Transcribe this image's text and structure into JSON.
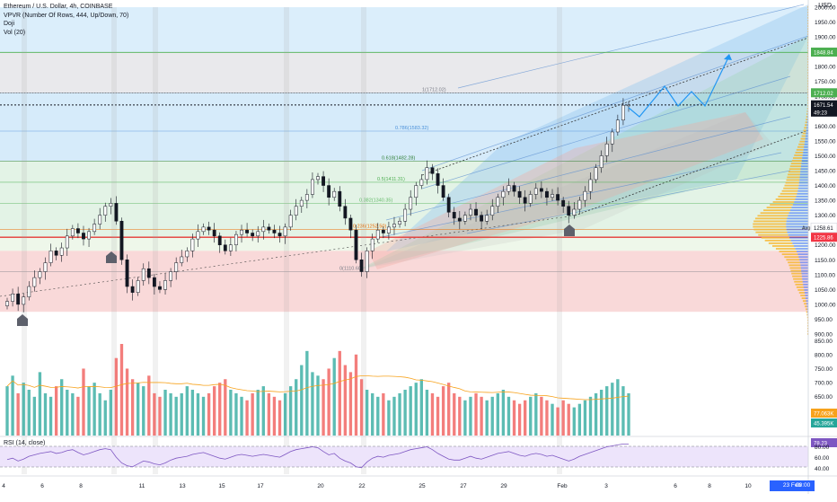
{
  "header": {
    "lines": [
      "Ethereum / U.S. Dollar, 4h, COINBASE",
      "VPVR (Number Of Rows, 444, Up/Down, 70)",
      "Doji",
      "Vol (20)"
    ],
    "currency": "USD"
  },
  "rsi": {
    "label": "RSI (14, close)",
    "value_label": "78.23",
    "ticks": [
      "80.00",
      "60.00",
      "40.00"
    ]
  },
  "price_axis": {
    "min": 900,
    "max": 2000,
    "ticks": [
      "2000.00",
      "1950.00",
      "1900.00",
      "1850.00",
      "1800.00",
      "1750.00",
      "1700.00",
      "1650.00",
      "1600.00",
      "1550.00",
      "1500.00",
      "1450.00",
      "1400.00",
      "1350.00",
      "1300.00",
      "1250.00",
      "1200.00",
      "1150.00",
      "1100.00",
      "1050.00",
      "1000.00",
      "950.00",
      "900.00"
    ],
    "badges": [
      {
        "label": "1848.84",
        "value": 1848.84,
        "color": "#4caf50"
      },
      {
        "label": "1712.02",
        "value": 1712.02,
        "color": "#4caf50"
      },
      {
        "label": "1671.54",
        "value": 1671.54,
        "color": "#131722"
      },
      {
        "label": "49:23",
        "value": 1647,
        "color": "#131722"
      },
      {
        "label": "1258.61",
        "value": 1258.61,
        "color": "#ffffff"
      },
      {
        "label": "1225.86",
        "value": 1225.86,
        "color": "#f23645"
      }
    ],
    "avg_label": "Avg"
  },
  "volume_axis": {
    "ticks": [
      "850.00",
      "800.00",
      "750.00",
      "700.00",
      "650.00",
      "600.00",
      "550.00"
    ],
    "badges": [
      {
        "label": "77.063K",
        "color": "#f7a21b"
      },
      {
        "label": "45.395K",
        "color": "#26a69a"
      }
    ]
  },
  "time_axis": {
    "labels": [
      "4",
      "6",
      "8",
      "11",
      "13",
      "15",
      "17",
      "20",
      "22",
      "25",
      "27",
      "29",
      "Feb",
      "3",
      "6",
      "8",
      "10"
    ],
    "date_badge": "23 Feb '21",
    "time_badge": "00:00"
  },
  "fib_levels": [
    {
      "label": "1(1712.02)",
      "value": 1712
    },
    {
      "label": "0.786(1583.32)",
      "value": 1583
    },
    {
      "label": "0.618(1482.28)",
      "value": 1482
    },
    {
      "label": "0.5(1411.31)",
      "value": 1411
    },
    {
      "label": "0.382(1340.35)",
      "value": 1340
    },
    {
      "label": "0.236(1252.50)",
      "value": 1252
    },
    {
      "label": "0(1110.60)",
      "value": 1110
    }
  ],
  "chart_data": {
    "type": "candlestick",
    "title": "Ethereum / U.S. Dollar, 4h, COINBASE",
    "ylim": [
      900,
      2000
    ],
    "x_labels": [
      "4",
      "6",
      "8",
      "11",
      "13",
      "15",
      "17",
      "20",
      "22",
      "25",
      "27",
      "29",
      "Feb",
      "3",
      "6",
      "8",
      "10"
    ],
    "key_prices": {
      "last": 1671.54,
      "resistance": 1848.84,
      "fib_1": 1712.02,
      "support": 1225.86,
      "poc": 1258.61
    },
    "close": [
      1010,
      1035,
      1000,
      1025,
      1060,
      1090,
      1110,
      1140,
      1180,
      1165,
      1190,
      1230,
      1255,
      1240,
      1220,
      1245,
      1270,
      1300,
      1330,
      1340,
      1280,
      1150,
      1060,
      1040,
      1080,
      1120,
      1090,
      1060,
      1050,
      1080,
      1110,
      1140,
      1160,
      1180,
      1220,
      1245,
      1260,
      1250,
      1230,
      1200,
      1180,
      1200,
      1235,
      1250,
      1240,
      1230,
      1245,
      1260,
      1250,
      1240,
      1230,
      1260,
      1300,
      1330,
      1350,
      1370,
      1420,
      1430,
      1400,
      1360,
      1380,
      1330,
      1290,
      1250,
      1150,
      1110,
      1180,
      1220,
      1250,
      1240,
      1260,
      1270,
      1280,
      1320,
      1360,
      1400,
      1420,
      1460,
      1440,
      1400,
      1360,
      1310,
      1290,
      1280,
      1300,
      1320,
      1300,
      1280,
      1300,
      1330,
      1360,
      1380,
      1400,
      1380,
      1360,
      1340,
      1370,
      1390,
      1380,
      1360,
      1370,
      1350,
      1330,
      1300,
      1320,
      1350,
      1380,
      1420,
      1460,
      1500,
      1540,
      1580,
      1620,
      1670,
      1671
    ],
    "volume": [
      70,
      85,
      60,
      75,
      65,
      55,
      90,
      60,
      55,
      70,
      80,
      65,
      60,
      55,
      95,
      70,
      75,
      60,
      50,
      65,
      110,
      130,
      95,
      80,
      75,
      70,
      85,
      60,
      55,
      65,
      60,
      55,
      60,
      70,
      65,
      60,
      55,
      60,
      70,
      75,
      80,
      65,
      60,
      55,
      50,
      60,
      65,
      70,
      60,
      55,
      50,
      60,
      70,
      80,
      100,
      120,
      90,
      85,
      80,
      95,
      110,
      120,
      100,
      90,
      115,
      80,
      65,
      60,
      55,
      60,
      50,
      55,
      60,
      65,
      70,
      75,
      80,
      65,
      60,
      55,
      70,
      75,
      60,
      55,
      50,
      55,
      60,
      55,
      50,
      55,
      60,
      65,
      55,
      50,
      45,
      50,
      55,
      60,
      55,
      50,
      45,
      40,
      50,
      45,
      40,
      45,
      50,
      55,
      60,
      65,
      70,
      75,
      80,
      70,
      60
    ],
    "volume_ma_label": "77.063K",
    "rsi": [
      45,
      48,
      42,
      46,
      52,
      55,
      58,
      60,
      62,
      58,
      60,
      64,
      66,
      60,
      55,
      58,
      62,
      66,
      68,
      66,
      50,
      38,
      32,
      30,
      36,
      42,
      40,
      36,
      34,
      38,
      44,
      48,
      50,
      52,
      56,
      58,
      60,
      56,
      52,
      48,
      46,
      50,
      54,
      56,
      54,
      52,
      54,
      56,
      54,
      52,
      50,
      56,
      62,
      66,
      68,
      70,
      72,
      70,
      62,
      55,
      58,
      48,
      42,
      38,
      30,
      28,
      40,
      48,
      52,
      50,
      54,
      56,
      58,
      62,
      66,
      68,
      70,
      72,
      66,
      58,
      52,
      46,
      44,
      44,
      48,
      52,
      48,
      46,
      50,
      54,
      58,
      60,
      62,
      58,
      54,
      52,
      56,
      58,
      56,
      52,
      54,
      50,
      46,
      42,
      46,
      52,
      56,
      60,
      64,
      68,
      72,
      74,
      76,
      78,
      78
    ]
  }
}
